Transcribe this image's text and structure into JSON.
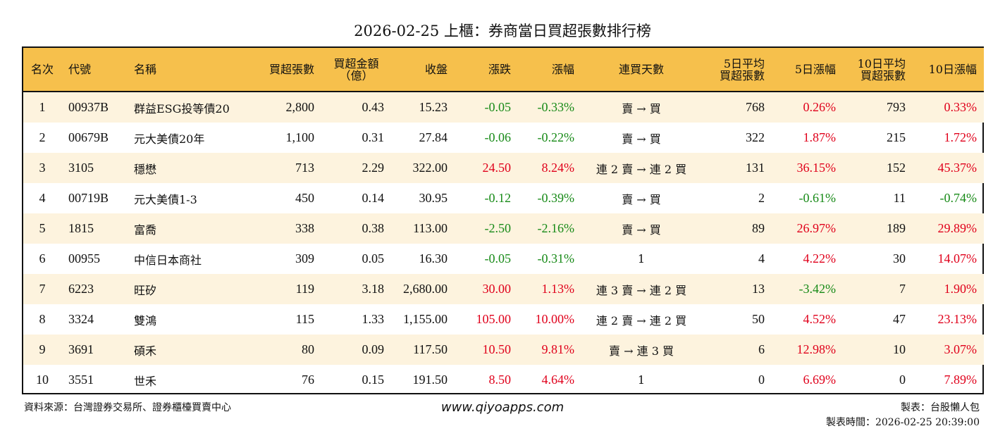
{
  "title": "2026-02-25 上櫃：券商當日買超張數排行榜",
  "colors": {
    "header_bg": "#f6c04c",
    "row_alt": "#fdf3de",
    "up": "#e0001b",
    "down": "#178a17"
  },
  "columns": [
    "名次",
    "代號",
    "名稱",
    "買超張數",
    "買超金額\n（億）",
    "收盤",
    "漲跌",
    "漲幅",
    "連買天數",
    "5日平均\n買超張數",
    "5日漲幅",
    "10日平均\n買超張數",
    "10日漲幅"
  ],
  "rows": [
    [
      "1",
      "00937B",
      "群益ESG投等債20",
      "2,800",
      "0.43",
      "15.23",
      "-0.05",
      "-0.33%",
      "賣 → 買",
      "768",
      "0.26%",
      "793",
      "0.33%"
    ],
    [
      "2",
      "00679B",
      "元大美債20年",
      "1,100",
      "0.31",
      "27.84",
      "-0.06",
      "-0.22%",
      "賣 → 買",
      "322",
      "1.87%",
      "215",
      "1.72%"
    ],
    [
      "3",
      "3105",
      "穩懋",
      "713",
      "2.29",
      "322.00",
      "24.50",
      "8.24%",
      "連 2 賣 → 連 2 買",
      "131",
      "36.15%",
      "152",
      "45.37%"
    ],
    [
      "4",
      "00719B",
      "元大美債1-3",
      "450",
      "0.14",
      "30.95",
      "-0.12",
      "-0.39%",
      "賣 → 買",
      "2",
      "-0.61%",
      "11",
      "-0.74%"
    ],
    [
      "5",
      "1815",
      "富喬",
      "338",
      "0.38",
      "113.00",
      "-2.50",
      "-2.16%",
      "賣 → 買",
      "89",
      "26.97%",
      "189",
      "29.89%"
    ],
    [
      "6",
      "00955",
      "中信日本商社",
      "309",
      "0.05",
      "16.30",
      "-0.05",
      "-0.31%",
      "1",
      "4",
      "4.22%",
      "30",
      "14.07%"
    ],
    [
      "7",
      "6223",
      "旺矽",
      "119",
      "3.18",
      "2,680.00",
      "30.00",
      "1.13%",
      "連 3 賣 → 連 2 買",
      "13",
      "-3.42%",
      "7",
      "1.90%"
    ],
    [
      "8",
      "3324",
      "雙鴻",
      "115",
      "1.33",
      "1,155.00",
      "105.00",
      "10.00%",
      "連 2 賣 → 連 2 買",
      "50",
      "4.52%",
      "47",
      "23.13%"
    ],
    [
      "9",
      "3691",
      "碩禾",
      "80",
      "0.09",
      "117.50",
      "10.50",
      "9.81%",
      "賣 → 連 3 買",
      "6",
      "12.98%",
      "10",
      "3.07%"
    ],
    [
      "10",
      "3551",
      "世禾",
      "76",
      "0.15",
      "191.50",
      "8.50",
      "4.64%",
      "1",
      "0",
      "6.69%",
      "0",
      "7.89%"
    ]
  ],
  "footer": {
    "source": "資料來源：台灣證券交易所、證券櫃檯買賣中心",
    "site": "www.qiyoapps.com",
    "maker": "製表：台股懶人包",
    "time": "製表時間：2026-02-25 20:39:00"
  }
}
